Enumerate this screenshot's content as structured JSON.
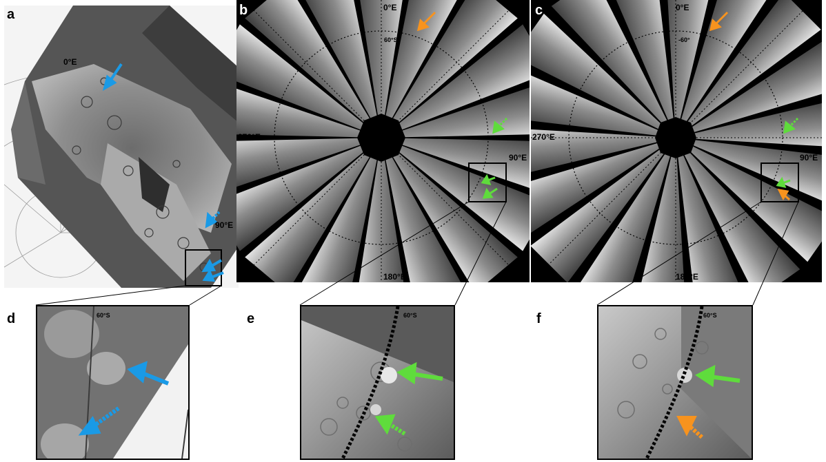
{
  "panels": {
    "a": {
      "letter": "a",
      "lon0": "0°E",
      "lon90": "90°E"
    },
    "b": {
      "letter": "b",
      "lon0": "0°E",
      "lat": "60°S",
      "lon90": "90°E",
      "lon270": "270°E",
      "lon180": "180°E"
    },
    "c": {
      "letter": "c",
      "lon0": "0°E",
      "lat": "-60°",
      "lon90": "90°E",
      "lon270": "270°E",
      "lon180": "180°E"
    },
    "d": {
      "letter": "d",
      "lat": "60°S"
    },
    "e": {
      "letter": "e",
      "lat": "60°S"
    },
    "f": {
      "letter": "f",
      "lat": "60°S"
    }
  },
  "colors": {
    "blue_arrow": "#1a9ae6",
    "green_arrow": "#5fdc3c",
    "orange_arrow": "#f7931e"
  }
}
